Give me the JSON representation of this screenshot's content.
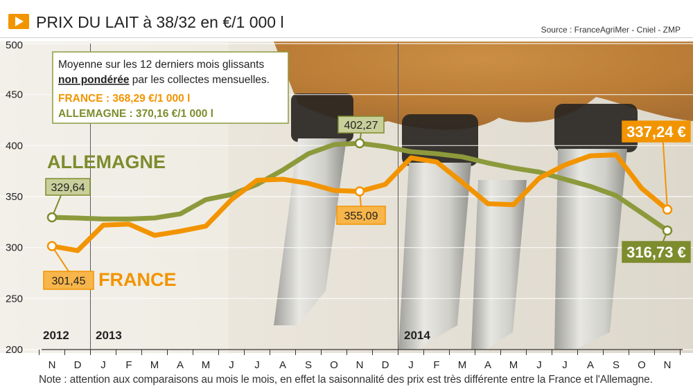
{
  "header": {
    "title": "PRIX DU LAIT à 38/32 en €/1 000 l",
    "source": "Source : FranceAgriMer - Cniel - ZMP"
  },
  "infobox": {
    "line1": "Moyenne sur les 12 derniers mois glissants",
    "line2_bold": "non pondérée",
    "line2_rest": " par les collectes mensuelles.",
    "france": "FRANCE : 368,29 €/1 000 l",
    "allemagne": "ALLEMAGNE : 370,16 €/1 000 l"
  },
  "note": "Note : attention aux comparaisons au mois le mois, en effet la saisonnalité des prix est très différente entre la France et l'Allemagne.",
  "colors": {
    "france": "#f29400",
    "allemagne": "#8c9a3c",
    "france_label_bg": "#f29400",
    "allemagne_label_bg": "#7d8c2d"
  },
  "chart_data": {
    "type": "line",
    "x": [
      "N",
      "D",
      "J",
      "F",
      "M",
      "A",
      "M",
      "J",
      "J",
      "A",
      "S",
      "O",
      "N",
      "D",
      "J",
      "F",
      "M",
      "A",
      "M",
      "J",
      "J",
      "A",
      "S",
      "O",
      "N"
    ],
    "year_labels": [
      "2012",
      "2013",
      "2014"
    ],
    "ylim": [
      200,
      500
    ],
    "yticks": [
      "200",
      "250",
      "300",
      "350",
      "400",
      "450",
      "500"
    ],
    "series": [
      {
        "name": "ALLEMAGNE",
        "values": [
          329.64,
          329,
          328,
          328,
          329,
          333,
          347,
          352,
          362,
          376,
          392,
          401,
          402.27,
          399,
          394,
          392,
          389,
          383,
          378,
          374,
          367,
          360,
          351,
          334,
          316.73
        ],
        "point_labels": [
          {
            "index": 0,
            "text": "329,64"
          },
          {
            "index": 12,
            "text": "402,27"
          },
          {
            "index": 24,
            "text": "316,73 €"
          }
        ]
      },
      {
        "name": "FRANCE",
        "values": [
          301.45,
          297,
          322,
          323,
          312,
          316,
          321,
          347,
          366,
          367,
          363,
          356,
          355.09,
          362,
          388,
          384,
          364,
          343,
          342,
          368,
          381,
          390,
          391,
          358,
          337.24
        ],
        "point_labels": [
          {
            "index": 0,
            "text": "301,45"
          },
          {
            "index": 12,
            "text": "355,09"
          },
          {
            "index": 24,
            "text": "337,24 €"
          }
        ]
      }
    ]
  }
}
